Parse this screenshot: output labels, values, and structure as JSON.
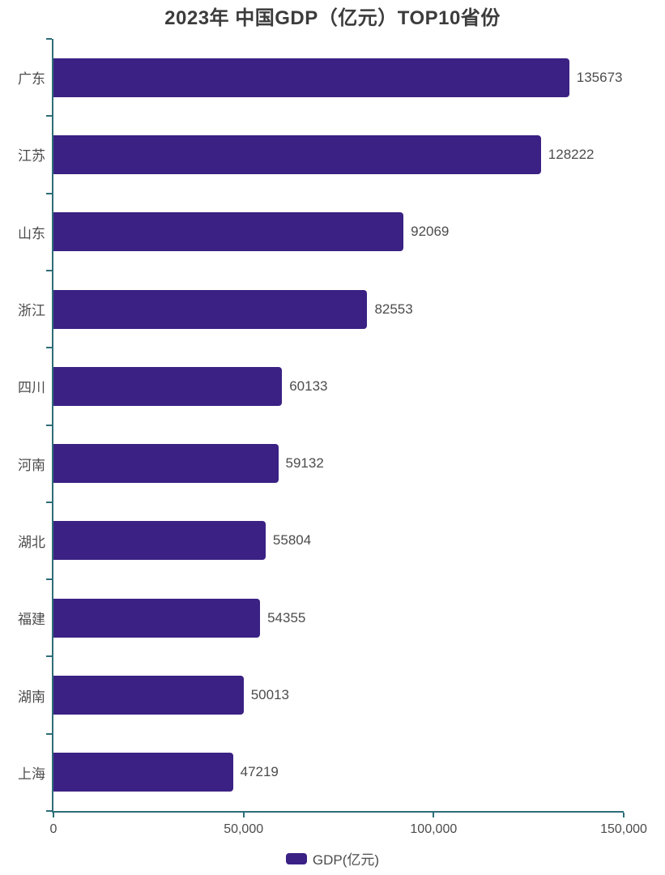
{
  "title": "2023年 中国GDP（亿元）TOP10省份",
  "legend": {
    "label": "GDP(亿元)"
  },
  "colors": {
    "bar": "#3a2183",
    "axis": "#2e6e78",
    "title_text": "#3c3c3c",
    "label_text": "#4c4c4c",
    "background": "#ffffff"
  },
  "chart_data": {
    "type": "bar",
    "orientation": "horizontal",
    "title": "2023年 中国GDP（亿元）TOP10省份",
    "categories": [
      "广东",
      "江苏",
      "山东",
      "浙江",
      "四川",
      "河南",
      "湖北",
      "福建",
      "湖南",
      "上海"
    ],
    "values": [
      135673,
      128222,
      92069,
      82553,
      60133,
      59132,
      55804,
      54355,
      50013,
      47219
    ],
    "series_name": "GDP(亿元)",
    "xlabel": "",
    "ylabel": "",
    "xlim": [
      0,
      150000
    ],
    "x_tick_values": [
      0,
      50000,
      100000,
      150000
    ],
    "x_tick_labels": [
      "0",
      "50,000",
      "100,000",
      "150,000"
    ],
    "grid": false,
    "legend_position": "bottom"
  }
}
